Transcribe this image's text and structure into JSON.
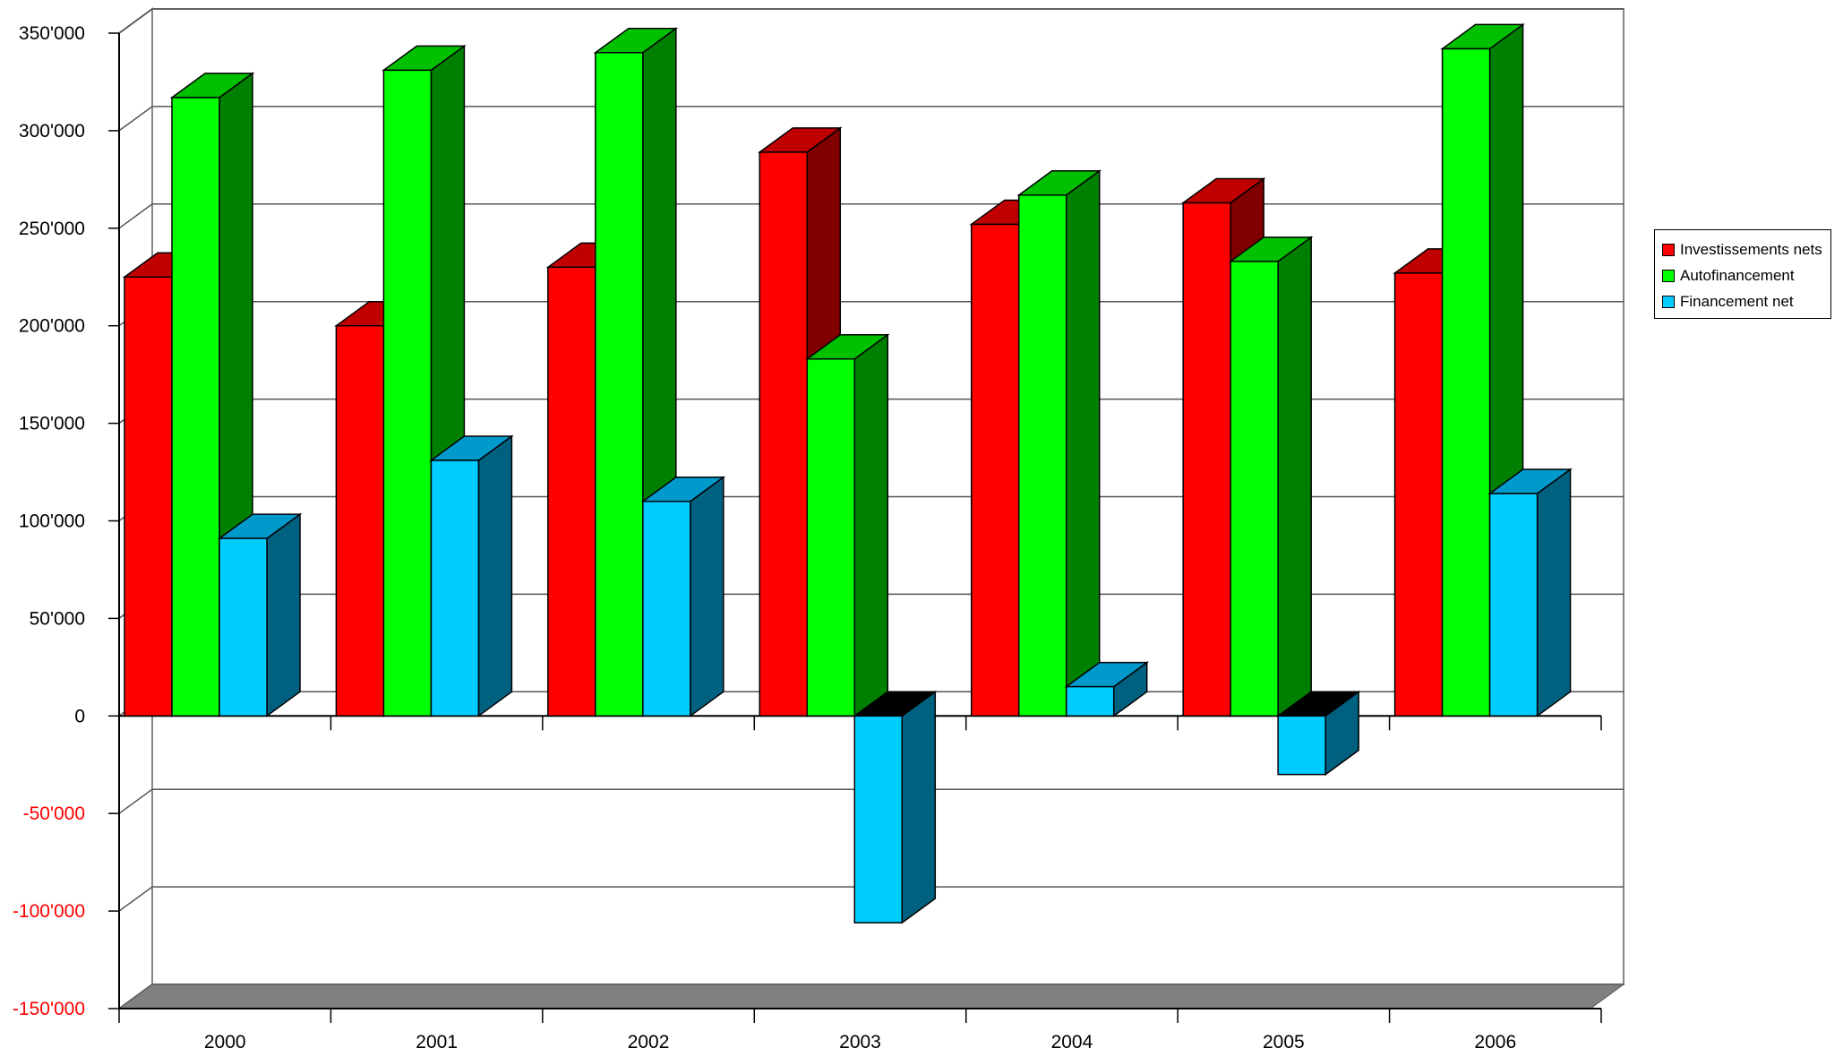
{
  "chart_data": {
    "type": "bar",
    "categories": [
      "2000",
      "2001",
      "2002",
      "2003",
      "2004",
      "2005",
      "2006"
    ],
    "series": [
      {
        "name": "Investissements nets",
        "values": [
          225000,
          200000,
          230000,
          289000,
          252000,
          263000,
          227000
        ],
        "color": "#ff0000",
        "side_color": "#800000",
        "top_color": "#c00000"
      },
      {
        "name": "Autofinancement",
        "values": [
          317000,
          331000,
          340000,
          183000,
          267000,
          233000,
          342000
        ],
        "color": "#00ff00",
        "side_color": "#008000",
        "top_color": "#00c000"
      },
      {
        "name": "Financement net",
        "values": [
          91000,
          131000,
          110000,
          -106000,
          15000,
          -30000,
          114000
        ],
        "color": "#00ccff",
        "side_color": "#006080",
        "top_color": "#0099cc"
      }
    ],
    "y_ticks": [
      "350'000",
      "300'000",
      "250'000",
      "200'000",
      "150'000",
      "100'000",
      "50'000",
      "0",
      "-50'000",
      "-100'000",
      "-150'000"
    ],
    "ylim": [
      -150000,
      350000
    ],
    "negative_tick_color": "#ff0000",
    "grid": true,
    "legend_position": "right"
  }
}
